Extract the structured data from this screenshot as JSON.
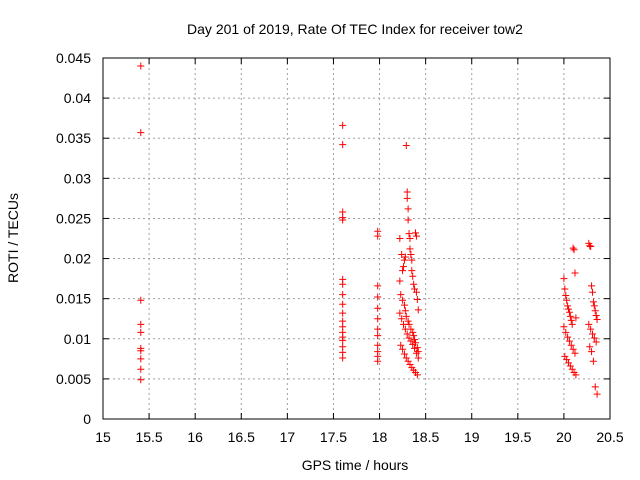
{
  "chart_data": {
    "type": "scatter",
    "title": "Day 201 of 2019, Rate Of TEC Index for receiver tow2",
    "xlabel": "GPS time / hours",
    "ylabel": "ROTI / TECUs",
    "xlim": [
      15,
      20.5
    ],
    "ylim": [
      0,
      0.045
    ],
    "xticks": [
      "15",
      "15.5",
      "16",
      "16.5",
      "17",
      "17.5",
      "18",
      "18.5",
      "19",
      "19.5",
      "20",
      "20.5"
    ],
    "yticks": [
      "0",
      "0.005",
      "0.01",
      "0.015",
      "0.02",
      "0.025",
      "0.03",
      "0.035",
      "0.04",
      "0.045"
    ],
    "grid": true,
    "marker": "+",
    "color": "#ff0000",
    "series": [
      {
        "x": [
          15.41,
          15.41,
          15.41,
          15.41,
          15.41,
          15.41,
          15.41,
          15.41,
          15.41,
          15.41,
          17.6,
          17.6,
          17.6,
          17.6,
          17.6,
          17.6,
          17.6,
          17.6,
          17.6,
          17.6,
          17.6,
          17.6,
          17.6,
          17.6,
          17.6,
          17.6,
          17.6,
          17.6,
          17.98,
          17.98,
          17.98,
          17.98,
          17.98,
          17.98,
          17.98,
          17.98,
          17.98,
          17.98,
          17.98,
          17.98,
          18.22,
          18.24,
          18.25,
          18.26,
          18.27,
          18.28,
          18.29,
          18.3,
          18.3,
          18.31,
          18.31,
          18.32,
          18.33,
          18.33,
          18.34,
          18.35,
          18.35,
          18.36,
          18.37,
          18.38,
          18.39,
          18.4,
          18.4,
          18.41,
          18.42,
          18.22,
          18.23,
          18.25,
          18.27,
          18.28,
          18.29,
          18.31,
          18.32,
          18.34,
          18.36,
          18.37,
          18.38,
          18.39,
          18.41,
          18.42,
          18.22,
          18.24,
          18.26,
          18.28,
          18.3,
          18.32,
          18.34,
          18.36,
          18.38,
          18.4,
          18.42,
          18.23,
          18.25,
          18.27,
          18.29,
          18.31,
          18.33,
          18.35,
          18.37,
          18.39,
          18.41,
          20.0,
          20.01,
          20.02,
          20.03,
          20.04,
          20.05,
          20.06,
          20.07,
          20.08,
          20.09,
          20.1,
          20.11,
          20.12,
          20.13,
          20.0,
          20.02,
          20.04,
          20.06,
          20.08,
          20.1,
          20.12,
          20.01,
          20.03,
          20.05,
          20.07,
          20.09,
          20.11,
          20.13,
          20.27,
          20.28,
          20.29,
          20.3,
          20.31,
          20.32,
          20.33,
          20.34,
          20.35,
          20.36,
          20.27,
          20.29,
          20.31,
          20.33,
          20.35,
          20.28,
          20.3,
          20.32,
          20.34,
          20.36
        ],
        "y": [
          0.044,
          0.0357,
          0.0148,
          0.0118,
          0.0108,
          0.0088,
          0.0085,
          0.0075,
          0.0062,
          0.0049,
          0.0366,
          0.0342,
          0.0258,
          0.0251,
          0.0248,
          0.0174,
          0.0168,
          0.0155,
          0.0143,
          0.0132,
          0.0122,
          0.0115,
          0.0108,
          0.0102,
          0.0098,
          0.009,
          0.0083,
          0.0076,
          0.0234,
          0.0228,
          0.0166,
          0.0152,
          0.0138,
          0.0125,
          0.0112,
          0.0104,
          0.0092,
          0.0084,
          0.0078,
          0.0072,
          0.0225,
          0.0205,
          0.0185,
          0.019,
          0.0198,
          0.0202,
          0.0341,
          0.0283,
          0.0275,
          0.0262,
          0.0248,
          0.0231,
          0.0225,
          0.0212,
          0.0205,
          0.0198,
          0.0185,
          0.0178,
          0.0168,
          0.0162,
          0.0232,
          0.0228,
          0.0158,
          0.0149,
          0.0136,
          0.0172,
          0.0155,
          0.0148,
          0.0142,
          0.0135,
          0.0128,
          0.0122,
          0.0118,
          0.0112,
          0.0108,
          0.0104,
          0.0099,
          0.0095,
          0.0089,
          0.0084,
          0.0132,
          0.0125,
          0.0118,
          0.0112,
          0.0106,
          0.0101,
          0.0097,
          0.0093,
          0.0088,
          0.0082,
          0.0076,
          0.0092,
          0.0087,
          0.0081,
          0.0076,
          0.0072,
          0.0068,
          0.0064,
          0.0061,
          0.0058,
          0.0055,
          0.0175,
          0.0162,
          0.0154,
          0.0148,
          0.0141,
          0.0137,
          0.0133,
          0.0128,
          0.0123,
          0.0118,
          0.0213,
          0.0211,
          0.0182,
          0.0126,
          0.0115,
          0.0108,
          0.0102,
          0.0097,
          0.0092,
          0.0087,
          0.0082,
          0.0078,
          0.0074,
          0.007,
          0.0066,
          0.0062,
          0.0058,
          0.0055,
          0.0219,
          0.0216,
          0.0215,
          0.0166,
          0.0158,
          0.0146,
          0.0141,
          0.0135,
          0.0129,
          0.0124,
          0.0118,
          0.0112,
          0.0106,
          0.0101,
          0.0096,
          0.009,
          0.0084,
          0.0072,
          0.004,
          0.0031
        ]
      }
    ]
  }
}
